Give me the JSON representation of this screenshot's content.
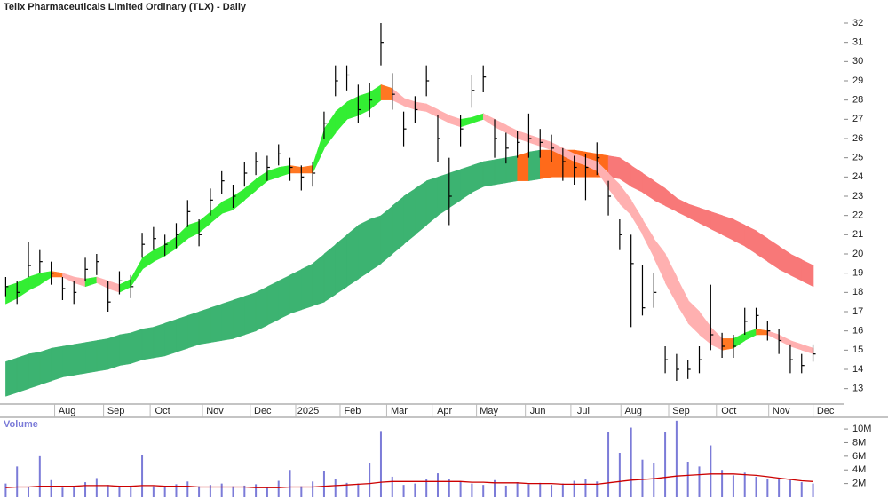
{
  "chart_data": {
    "type": "hlc_bar",
    "title": "Telix Pharmaceuticals Limited Ordinary (TLX) - Daily",
    "color": "#000000",
    "xlim": [
      -0.5,
      73.3
    ],
    "xticks": [
      {
        "value": 5.4,
        "label": "Aug"
      },
      {
        "value": 9.7,
        "label": "Sep"
      },
      {
        "value": 13.8,
        "label": "Oct"
      },
      {
        "value": 18.4,
        "label": "Nov"
      },
      {
        "value": 22.6,
        "label": "Dec"
      },
      {
        "value": 26.6,
        "label": "2025"
      },
      {
        "value": 30.5,
        "label": "Feb"
      },
      {
        "value": 34.6,
        "label": "Mar"
      },
      {
        "value": 38.6,
        "label": "Apr"
      },
      {
        "value": 42.5,
        "label": "May"
      },
      {
        "value": 46.8,
        "label": "Jun"
      },
      {
        "value": 50.8,
        "label": "Jul"
      },
      {
        "value": 55.2,
        "label": "Aug"
      },
      {
        "value": 59.4,
        "label": "Sep"
      },
      {
        "value": 63.6,
        "label": "Oct"
      },
      {
        "value": 68.2,
        "label": "Nov"
      },
      {
        "value": 72.1,
        "label": "Dec"
      }
    ],
    "ylim": [
      12.2,
      33.2
    ],
    "yticks": [
      13,
      14,
      15,
      16,
      17,
      18,
      19,
      20,
      21,
      22,
      23,
      24,
      25,
      26,
      27,
      28,
      29,
      30,
      31,
      32
    ],
    "high": [
      18.8,
      18.6,
      20.6,
      20.2,
      19.6,
      18.8,
      18.6,
      19.8,
      20.0,
      18.6,
      19.1,
      18.9,
      21.1,
      21.4,
      21.0,
      21.6,
      22.8,
      21.8,
      23.4,
      24.3,
      23.6,
      24.8,
      25.3,
      25.1,
      25.7,
      25.0,
      24.6,
      24.8,
      27.4,
      29.8,
      29.8,
      28.8,
      28.9,
      32.0,
      29.4,
      27.4,
      28.2,
      29.8,
      27.2,
      25.0,
      27.2,
      29.3,
      29.8,
      27.0,
      26.3,
      26.4,
      27.3,
      26.5,
      26.2,
      25.5,
      25.1,
      25.2,
      25.8,
      23.8,
      21.8,
      21.0,
      19.4,
      19.0,
      15.2,
      14.8,
      14.5,
      15.2,
      18.4,
      15.9,
      15.8,
      17.2,
      17.2,
      16.5,
      16.1,
      15.3,
      14.8,
      15.3
    ],
    "low": [
      17.8,
      17.4,
      18.8,
      19.0,
      18.4,
      17.6,
      17.4,
      18.6,
      18.9,
      17.0,
      17.9,
      17.7,
      19.8,
      20.2,
      19.9,
      20.3,
      21.4,
      20.4,
      22.0,
      23.1,
      22.4,
      23.5,
      24.1,
      23.8,
      24.6,
      23.8,
      23.3,
      23.5,
      26.0,
      28.2,
      28.5,
      26.8,
      27.1,
      29.8,
      27.5,
      25.6,
      26.8,
      28.2,
      24.8,
      21.5,
      25.6,
      27.6,
      28.4,
      25.0,
      24.7,
      25.0,
      25.0,
      25.0,
      24.8,
      23.8,
      23.6,
      22.8,
      24.1,
      22.0,
      20.2,
      16.2,
      16.8,
      17.2,
      13.8,
      13.4,
      13.5,
      13.8,
      15.0,
      14.6,
      14.6,
      15.8,
      16.1,
      15.5,
      14.8,
      13.8,
      13.8,
      14.4
    ],
    "close": [
      18.3,
      18.0,
      19.4,
      19.6,
      19.0,
      18.2,
      18.0,
      19.2,
      19.6,
      17.5,
      18.6,
      18.3,
      20.5,
      20.8,
      20.5,
      21.0,
      22.2,
      21.0,
      22.8,
      23.8,
      23.0,
      24.2,
      24.8,
      24.5,
      25.2,
      24.5,
      24.0,
      24.2,
      26.8,
      29.0,
      29.3,
      27.5,
      28.0,
      31.0,
      28.3,
      26.5,
      27.5,
      29.0,
      26.0,
      23.0,
      26.5,
      28.5,
      29.2,
      26.0,
      25.5,
      25.8,
      26.0,
      25.8,
      25.5,
      24.8,
      24.5,
      24.5,
      25.0,
      23.0,
      21.0,
      19.5,
      17.2,
      18.0,
      14.5,
      14.0,
      14.0,
      14.5,
      15.8,
      15.2,
      15.2,
      16.5,
      16.8,
      16.0,
      15.5,
      14.5,
      14.2,
      14.8
    ],
    "short_band": {
      "rising_color": "#33ee33",
      "mixed_color": "#ff7722",
      "falling_color": "#ffb0b0",
      "upper": [
        18.3,
        18.5,
        18.8,
        19.0,
        19.1,
        19.0,
        18.8,
        18.7,
        18.8,
        18.6,
        18.4,
        18.7,
        19.8,
        20.2,
        20.5,
        20.9,
        21.5,
        21.7,
        22.2,
        22.7,
        23.0,
        23.4,
        23.9,
        24.3,
        24.5,
        24.6,
        24.5,
        24.6,
        26.5,
        27.4,
        27.9,
        28.2,
        28.4,
        28.8,
        28.6,
        28.1,
        27.9,
        27.8,
        27.5,
        27.2,
        27.0,
        27.1,
        27.3,
        27.0,
        26.7,
        26.4,
        26.2,
        26.0,
        25.8,
        25.5,
        25.2,
        25.0,
        24.8,
        24.2,
        23.6,
        22.8,
        21.8,
        20.8,
        20.0,
        18.8,
        17.6,
        17.0,
        16.2,
        15.6,
        15.6,
        15.9,
        16.1,
        16.0,
        15.8,
        15.5,
        15.3,
        15.1
      ],
      "lower": [
        17.4,
        17.7,
        18.1,
        18.4,
        18.8,
        18.8,
        18.5,
        18.3,
        18.5,
        18.2,
        18.0,
        18.3,
        19.2,
        19.6,
        19.9,
        20.3,
        20.8,
        21.1,
        21.6,
        22.1,
        22.3,
        22.8,
        23.3,
        23.8,
        24.0,
        24.2,
        24.2,
        24.2,
        25.5,
        26.3,
        27.0,
        27.2,
        27.5,
        28.0,
        28.0,
        27.7,
        27.5,
        27.4,
        27.1,
        26.8,
        26.6,
        26.8,
        27.0,
        26.6,
        26.3,
        26.0,
        25.8,
        25.6,
        25.4,
        25.1,
        24.8,
        24.6,
        24.3,
        23.4,
        22.6,
        22.0,
        21.0,
        19.8,
        18.5,
        17.4,
        16.4,
        15.8,
        15.3,
        15.0,
        15.1,
        15.5,
        15.8,
        15.8,
        15.5,
        15.2,
        15.0,
        14.8
      ]
    },
    "long_band": {
      "rising_color": "#3cb371",
      "mixed_color": "#ff6a1a",
      "falling_color": "#f87878",
      "upper": [
        14.4,
        14.6,
        14.8,
        14.9,
        15.1,
        15.2,
        15.3,
        15.4,
        15.5,
        15.6,
        15.8,
        15.9,
        16.1,
        16.2,
        16.4,
        16.6,
        16.8,
        17.0,
        17.2,
        17.4,
        17.6,
        17.8,
        18.0,
        18.3,
        18.6,
        18.9,
        19.2,
        19.5,
        20.0,
        20.5,
        21.0,
        21.5,
        21.8,
        22.0,
        22.5,
        23.0,
        23.4,
        23.8,
        24.0,
        24.2,
        24.4,
        24.6,
        24.8,
        24.9,
        25.0,
        25.1,
        25.3,
        25.4,
        25.4,
        25.4,
        25.4,
        25.3,
        25.2,
        25.1,
        25.0,
        24.6,
        24.2,
        23.8,
        23.4,
        22.9,
        22.6,
        22.4,
        22.2,
        22.0,
        21.8,
        21.5,
        21.2,
        20.8,
        20.4,
        20.0,
        19.7,
        19.4
      ],
      "lower": [
        12.6,
        12.8,
        13.0,
        13.2,
        13.4,
        13.6,
        13.7,
        13.8,
        13.9,
        14.0,
        14.2,
        14.3,
        14.5,
        14.6,
        14.7,
        14.9,
        15.1,
        15.3,
        15.4,
        15.5,
        15.6,
        15.8,
        16.0,
        16.3,
        16.6,
        16.9,
        17.1,
        17.3,
        17.5,
        17.9,
        18.3,
        18.7,
        19.1,
        19.5,
        20.0,
        20.5,
        21.0,
        21.5,
        22.0,
        22.4,
        22.8,
        23.2,
        23.5,
        23.6,
        23.7,
        23.8,
        23.8,
        23.9,
        24.0,
        24.0,
        24.0,
        24.0,
        24.0,
        24.0,
        23.9,
        23.5,
        23.2,
        22.8,
        22.5,
        22.2,
        21.9,
        21.6,
        21.3,
        21.0,
        20.7,
        20.4,
        20.0,
        19.6,
        19.2,
        18.9,
        18.6,
        18.3
      ]
    },
    "volume": {
      "title": "Volume",
      "color": "#7b7bd8",
      "average_color": "#cc0000",
      "ylim": [
        0,
        11.7
      ],
      "yticks": [
        {
          "value": 2,
          "label": "2M"
        },
        {
          "value": 4,
          "label": "4M"
        },
        {
          "value": 6,
          "label": "6M"
        },
        {
          "value": 8,
          "label": "8M"
        },
        {
          "value": 10,
          "label": "10M"
        }
      ],
      "values": [
        2.0,
        4.5,
        1.5,
        6.0,
        2.5,
        1.4,
        1.6,
        2.2,
        2.8,
        1.8,
        1.5,
        1.7,
        6.2,
        1.6,
        1.5,
        1.9,
        2.3,
        1.6,
        1.8,
        2.0,
        1.6,
        1.7,
        1.9,
        1.5,
        2.4,
        4.0,
        1.6,
        2.3,
        3.8,
        2.6,
        2.1,
        2.0,
        5.0,
        9.7,
        3.0,
        1.8,
        2.0,
        2.6,
        3.5,
        2.7,
        2.3,
        2.0,
        1.8,
        2.5,
        1.7,
        2.2,
        1.9,
        2.1,
        1.8,
        2.0,
        2.4,
        2.6,
        2.3,
        9.5,
        6.5,
        10.2,
        5.5,
        5.0,
        9.5,
        11.2,
        5.2,
        4.5,
        7.6,
        4.0,
        3.2,
        3.6,
        3.0,
        2.6,
        2.8,
        2.5,
        2.2,
        2.0
      ],
      "average": [
        1.4,
        1.5,
        1.5,
        1.6,
        1.6,
        1.6,
        1.6,
        1.7,
        1.7,
        1.7,
        1.6,
        1.6,
        1.7,
        1.7,
        1.6,
        1.6,
        1.6,
        1.5,
        1.5,
        1.5,
        1.5,
        1.5,
        1.4,
        1.4,
        1.4,
        1.5,
        1.5,
        1.5,
        1.6,
        1.7,
        1.8,
        1.9,
        2.0,
        2.2,
        2.3,
        2.3,
        2.3,
        2.3,
        2.3,
        2.3,
        2.3,
        2.2,
        2.2,
        2.1,
        2.1,
        2.1,
        2.0,
        2.0,
        2.0,
        1.9,
        1.9,
        1.9,
        1.9,
        2.1,
        2.3,
        2.5,
        2.6,
        2.7,
        2.9,
        3.1,
        3.2,
        3.3,
        3.4,
        3.4,
        3.4,
        3.3,
        3.2,
        3.0,
        2.8,
        2.6,
        2.4,
        2.3
      ]
    }
  }
}
